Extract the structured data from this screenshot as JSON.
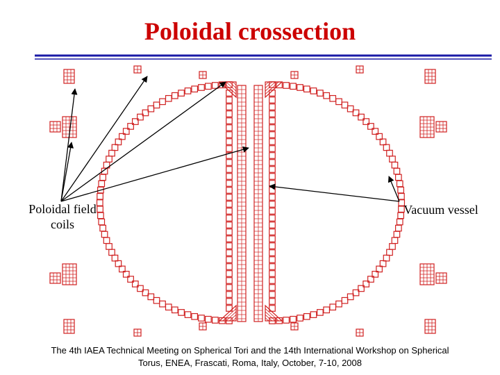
{
  "title": "Poloidal crossection",
  "labels": {
    "left_line1": "Poloidal field",
    "left_line2": "coils",
    "right": "Vacuum vessel"
  },
  "footer": {
    "line1": "The 4th IAEA Technical Meeting on Spherical Tori and the 14th International Workshop on Spherical",
    "line2": "Torus, ENEA, Frascati, Roma, Italy, October, 7-10, 2008"
  },
  "colors": {
    "title": "#cc0000",
    "rule": "#1a1aa6",
    "coil": "#d02020",
    "arrow": "#000000"
  }
}
